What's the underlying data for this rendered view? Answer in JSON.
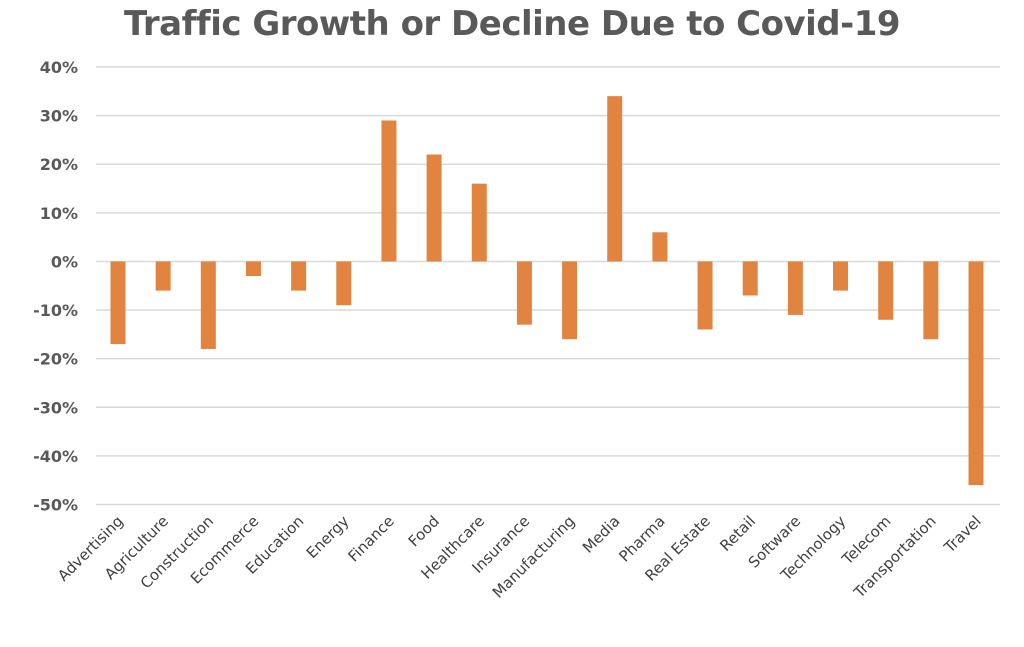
{
  "chart_data": {
    "type": "bar",
    "title": "Traffic Growth or Decline Due to Covid-19",
    "xlabel": "",
    "ylabel": "",
    "ylim": [
      -50,
      40
    ],
    "yticks": [
      40,
      30,
      20,
      10,
      0,
      -10,
      -20,
      -30,
      -40,
      -50
    ],
    "ytick_labels": [
      "40%",
      "30%",
      "20%",
      "10%",
      "0%",
      "-10%",
      "-20%",
      "-30%",
      "-40%",
      "-50%"
    ],
    "grid": true,
    "bar_color": "#E0843F",
    "categories": [
      "Advertising",
      "Agriculture",
      "Construction",
      "Ecommerce",
      "Education",
      "Energy",
      "Finance",
      "Food",
      "Healthcare",
      "Insurance",
      "Manufacturing",
      "Media",
      "Pharma",
      "Real Estate",
      "Retail",
      "Software",
      "Technology",
      "Telecom",
      "Transportation",
      "Travel"
    ],
    "values": [
      -17,
      -6,
      -18,
      -3,
      -6,
      -9,
      29,
      22,
      16,
      -13,
      -16,
      34,
      6,
      -14,
      -7,
      -11,
      -6,
      -12,
      -16,
      -46
    ]
  }
}
